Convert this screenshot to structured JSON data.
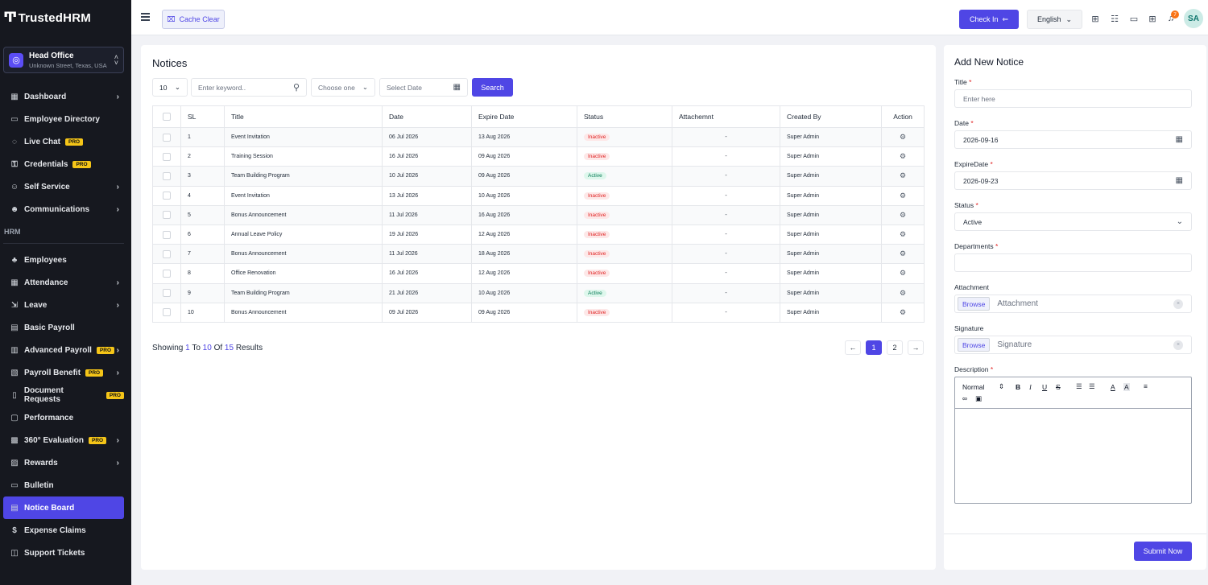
{
  "brand": {
    "name": "TrustedHRM"
  },
  "branch": {
    "name": "Head Office",
    "address": "Unknown Street, Texas, USA"
  },
  "sidebar": {
    "items_top": [
      {
        "label": "Dashboard",
        "icon": "grid-icon",
        "caret": true,
        "pro": false
      },
      {
        "label": "Employee Directory",
        "icon": "id-card-icon",
        "caret": false,
        "pro": false
      },
      {
        "label": "Live Chat",
        "icon": "chat-icon",
        "caret": false,
        "pro": true
      },
      {
        "label": "Credentials",
        "icon": "key-icon",
        "caret": false,
        "pro": true
      },
      {
        "label": "Self Service",
        "icon": "user-icon",
        "caret": true,
        "pro": false
      },
      {
        "label": "Communications",
        "icon": "people-icon",
        "caret": true,
        "pro": false
      }
    ],
    "section_label": "HRM",
    "items_hrm": [
      {
        "label": "Employees",
        "icon": "employees-icon",
        "caret": false,
        "pro": false
      },
      {
        "label": "Attendance",
        "icon": "grid-icon",
        "caret": true,
        "pro": false
      },
      {
        "label": "Leave",
        "icon": "exit-icon",
        "caret": true,
        "pro": false
      },
      {
        "label": "Basic Payroll",
        "icon": "payroll-icon",
        "caret": false,
        "pro": false
      },
      {
        "label": "Advanced Payroll",
        "icon": "chart-icon",
        "caret": true,
        "pro": true
      },
      {
        "label": "Payroll Benefit",
        "icon": "clipboard-icon",
        "caret": true,
        "pro": true
      },
      {
        "label": "Document Requests",
        "icon": "document-icon",
        "caret": false,
        "pro": true
      },
      {
        "label": "Performance",
        "icon": "performance-icon",
        "caret": false,
        "pro": false
      },
      {
        "label": "360° Evaluation",
        "icon": "calendar-icon",
        "caret": true,
        "pro": true
      },
      {
        "label": "Rewards",
        "icon": "gift-icon",
        "caret": true,
        "pro": false
      },
      {
        "label": "Bulletin",
        "icon": "bulletin-icon",
        "caret": false,
        "pro": false
      },
      {
        "label": "Notice Board",
        "icon": "board-icon",
        "caret": false,
        "pro": false,
        "active": true
      },
      {
        "label": "Expense Claims",
        "icon": "dollar-icon",
        "caret": false,
        "pro": false
      },
      {
        "label": "Support Tickets",
        "icon": "ticket-icon",
        "caret": false,
        "pro": false
      }
    ],
    "pro_label": "PRO"
  },
  "topbar": {
    "cache_clear": "Cache Clear",
    "check_in": "Check In",
    "language": "English",
    "notification_count": "7",
    "avatar_initials": "SA"
  },
  "notices": {
    "title": "Notices",
    "per_page": "10",
    "keyword_placeholder": "Enter keyword..",
    "status_placeholder": "Choose one",
    "date_placeholder": "Select Date",
    "search_label": "Search",
    "columns": [
      "SL",
      "Title",
      "Date",
      "Expire Date",
      "Status",
      "Attachemnt",
      "Created By",
      "Action"
    ],
    "rows": [
      {
        "sl": "1",
        "title": "Event Invitation",
        "date": "06 Jul 2026",
        "expire": "13 Aug 2026",
        "status": "Inactive",
        "attachment": "-",
        "created_by": "Super Admin"
      },
      {
        "sl": "2",
        "title": "Training Session",
        "date": "16 Jul 2026",
        "expire": "09 Aug 2026",
        "status": "Inactive",
        "attachment": "-",
        "created_by": "Super Admin"
      },
      {
        "sl": "3",
        "title": "Team Building Program",
        "date": "10 Jul 2026",
        "expire": "09 Aug 2026",
        "status": "Active",
        "attachment": "-",
        "created_by": "Super Admin"
      },
      {
        "sl": "4",
        "title": "Event Invitation",
        "date": "13 Jul 2026",
        "expire": "10 Aug 2026",
        "status": "Inactive",
        "attachment": "-",
        "created_by": "Super Admin"
      },
      {
        "sl": "5",
        "title": "Bonus Announcement",
        "date": "11 Jul 2026",
        "expire": "16 Aug 2026",
        "status": "Inactive",
        "attachment": "-",
        "created_by": "Super Admin"
      },
      {
        "sl": "6",
        "title": "Annual Leave Policy",
        "date": "19 Jul 2026",
        "expire": "12 Aug 2026",
        "status": "Inactive",
        "attachment": "-",
        "created_by": "Super Admin"
      },
      {
        "sl": "7",
        "title": "Bonus Announcement",
        "date": "11 Jul 2026",
        "expire": "18 Aug 2026",
        "status": "Inactive",
        "attachment": "-",
        "created_by": "Super Admin"
      },
      {
        "sl": "8",
        "title": "Office Renovation",
        "date": "16 Jul 2026",
        "expire": "12 Aug 2026",
        "status": "Inactive",
        "attachment": "-",
        "created_by": "Super Admin"
      },
      {
        "sl": "9",
        "title": "Team Building Program",
        "date": "21 Jul 2026",
        "expire": "10 Aug 2026",
        "status": "Active",
        "attachment": "-",
        "created_by": "Super Admin"
      },
      {
        "sl": "10",
        "title": "Bonus Announcement",
        "date": "09 Jul 2026",
        "expire": "09 Aug 2026",
        "status": "Inactive",
        "attachment": "-",
        "created_by": "Super Admin"
      }
    ],
    "showing": {
      "prefix": "Showing",
      "from": "1",
      "to_label": "To",
      "to": "10",
      "of_label": "Of",
      "total": "15",
      "suffix": "Results"
    },
    "pagination": {
      "prev": "←",
      "pages": [
        "1",
        "2"
      ],
      "current": "1",
      "next": "→"
    }
  },
  "add_notice": {
    "heading": "Add New Notice",
    "required_mark": "*",
    "title_label": "Title",
    "title_placeholder": "Enter here",
    "date_label": "Date",
    "date_value": "2026-09-16",
    "expire_label": "ExpireDate",
    "expire_value": "2026-09-23",
    "status_label": "Status",
    "status_value": "Active",
    "departments_label": "Departments",
    "attachment_label": "Attachment",
    "attachment_placeholder": "Attachment",
    "signature_label": "Signature",
    "signature_placeholder": "Signature",
    "browse_label": "Browse",
    "description_label": "Description",
    "editor_format": "Normal",
    "submit_label": "Submit Now"
  },
  "colors": {
    "accent": "#4f46e5",
    "sidebar_bg": "#16181f",
    "pro_badge": "#f5c518",
    "inactive": "#e02424",
    "active": "#057a55"
  }
}
